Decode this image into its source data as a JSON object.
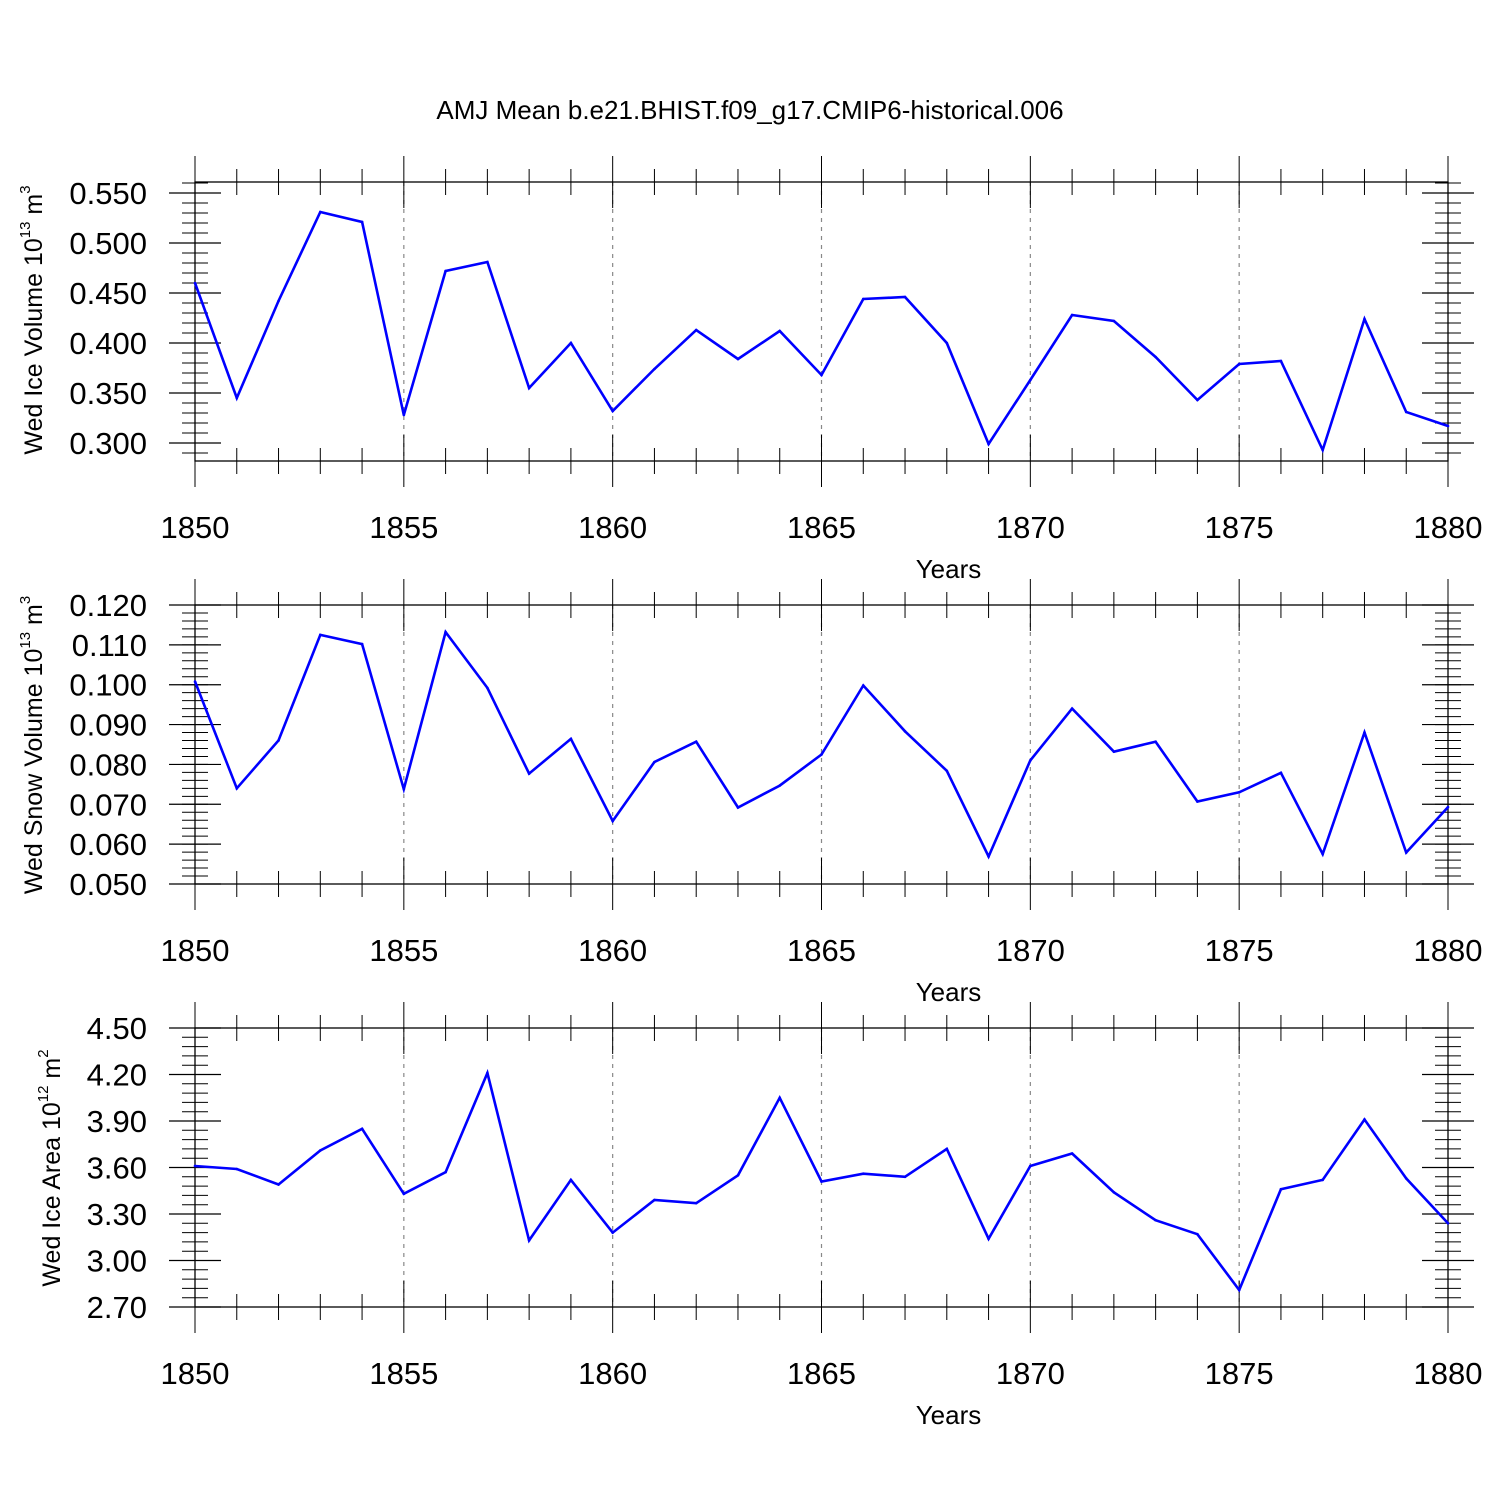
{
  "figure_title": "AMJ Mean b.e21.BHIST.f09_g17.CMIP6-historical.006",
  "line_color": "#0000ff",
  "chart_data": [
    {
      "type": "line",
      "title": "AMJ Mean b.e21.BHIST.f09_g17.CMIP6-historical.006",
      "xlabel": "Years",
      "ylabel_main": "Wed Ice Volume 10",
      "ylabel_exp": "13",
      "ylabel_unit": " m",
      "ylabel_unit_exp": "3",
      "x": [
        1850,
        1851,
        1852,
        1853,
        1854,
        1855,
        1856,
        1857,
        1858,
        1859,
        1860,
        1861,
        1862,
        1863,
        1864,
        1865,
        1866,
        1867,
        1868,
        1869,
        1870,
        1871,
        1872,
        1873,
        1874,
        1875,
        1876,
        1877,
        1878,
        1879,
        1880
      ],
      "values": [
        0.46,
        0.345,
        0.442,
        0.531,
        0.521,
        0.328,
        0.472,
        0.481,
        0.355,
        0.4,
        0.332,
        0.374,
        0.413,
        0.384,
        0.412,
        0.368,
        0.444,
        0.446,
        0.4,
        0.299,
        0.363,
        0.428,
        0.422,
        0.386,
        0.343,
        0.379,
        0.382,
        0.293,
        0.424,
        0.331,
        0.317
      ],
      "xlim": [
        1850,
        1880
      ],
      "ylim": [
        0.282,
        0.561
      ],
      "xticks": [
        "1850",
        "1855",
        "1860",
        "1865",
        "1870",
        "1875",
        "1880"
      ],
      "xtick_values": [
        1850,
        1855,
        1860,
        1865,
        1870,
        1875,
        1880
      ],
      "yticks": [
        "0.550",
        "0.500",
        "0.450",
        "0.400",
        "0.350",
        "0.300"
      ],
      "ytick_values": [
        0.55,
        0.5,
        0.45,
        0.4,
        0.35,
        0.3
      ],
      "yminor_step": 0.01
    },
    {
      "type": "line",
      "xlabel": "Years",
      "ylabel_main": "Wed Snow Volume 10",
      "ylabel_exp": "13",
      "ylabel_unit": " m",
      "ylabel_unit_exp": "3",
      "x": [
        1850,
        1851,
        1852,
        1853,
        1854,
        1855,
        1856,
        1857,
        1858,
        1859,
        1860,
        1861,
        1862,
        1863,
        1864,
        1865,
        1866,
        1867,
        1868,
        1869,
        1870,
        1871,
        1872,
        1873,
        1874,
        1875,
        1876,
        1877,
        1878,
        1879,
        1880
      ],
      "values": [
        0.1008,
        0.074,
        0.086,
        0.1125,
        0.1102,
        0.0738,
        0.1132,
        0.0992,
        0.0777,
        0.0864,
        0.0658,
        0.0806,
        0.0857,
        0.0692,
        0.0747,
        0.0825,
        0.0998,
        0.0883,
        0.0784,
        0.0569,
        0.081,
        0.094,
        0.0832,
        0.0857,
        0.0707,
        0.073,
        0.0779,
        0.0575,
        0.088,
        0.0579,
        0.0693
      ],
      "xlim": [
        1850,
        1880
      ],
      "ylim": [
        0.05,
        0.12
      ],
      "xticks": [
        "1850",
        "1855",
        "1860",
        "1865",
        "1870",
        "1875",
        "1880"
      ],
      "xtick_values": [
        1850,
        1855,
        1860,
        1865,
        1870,
        1875,
        1880
      ],
      "yticks": [
        "0.120",
        "0.110",
        "0.100",
        "0.090",
        "0.080",
        "0.070",
        "0.060",
        "0.050"
      ],
      "ytick_values": [
        0.12,
        0.11,
        0.1,
        0.09,
        0.08,
        0.07,
        0.06,
        0.05
      ],
      "yminor_step": 0.002
    },
    {
      "type": "line",
      "xlabel": "Years",
      "ylabel_main": "Wed Ice Area 10",
      "ylabel_exp": "12",
      "ylabel_unit": " m",
      "ylabel_unit_exp": "2",
      "x": [
        1850,
        1851,
        1852,
        1853,
        1854,
        1855,
        1856,
        1857,
        1858,
        1859,
        1860,
        1861,
        1862,
        1863,
        1864,
        1865,
        1866,
        1867,
        1868,
        1869,
        1870,
        1871,
        1872,
        1873,
        1874,
        1875,
        1876,
        1877,
        1878,
        1879,
        1880
      ],
      "values": [
        3.61,
        3.59,
        3.49,
        3.71,
        3.85,
        3.43,
        3.57,
        4.21,
        3.13,
        3.52,
        3.18,
        3.39,
        3.37,
        3.55,
        4.05,
        3.51,
        3.56,
        3.54,
        3.72,
        3.14,
        3.61,
        3.69,
        3.44,
        3.26,
        3.17,
        2.81,
        3.46,
        3.52,
        3.91,
        3.53,
        3.24
      ],
      "xlim": [
        1850,
        1880
      ],
      "ylim": [
        2.7,
        4.5
      ],
      "xticks": [
        "1850",
        "1855",
        "1860",
        "1865",
        "1870",
        "1875",
        "1880"
      ],
      "xtick_values": [
        1850,
        1855,
        1860,
        1865,
        1870,
        1875,
        1880
      ],
      "yticks": [
        "4.50",
        "4.20",
        "3.90",
        "3.60",
        "3.30",
        "3.00",
        "2.70"
      ],
      "ytick_values": [
        4.5,
        4.2,
        3.9,
        3.6,
        3.3,
        3.0,
        2.7
      ],
      "yminor_step": 0.06
    }
  ]
}
